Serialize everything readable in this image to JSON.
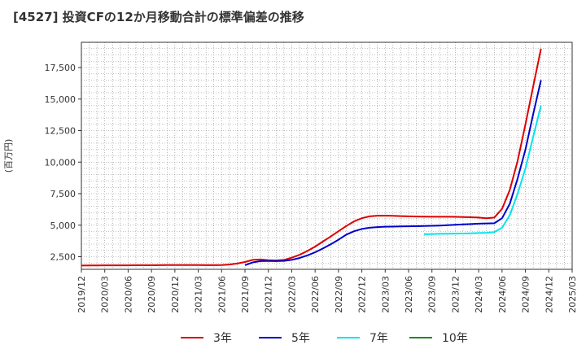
{
  "chart_data": {
    "type": "line",
    "title": "[4527]  投資CFの12か月移動合計の標準偏差の推移",
    "ylabel": "(百万円)",
    "xlabel": "",
    "ylim": [
      1500,
      19500
    ],
    "yticks": [
      2500,
      5000,
      7500,
      10000,
      12500,
      15000,
      17500
    ],
    "ytick_labels": [
      "2,500",
      "5,000",
      "7,500",
      "10,000",
      "12,500",
      "15,000",
      "17,500"
    ],
    "xticks": [
      "2019/12",
      "2020/03",
      "2020/06",
      "2020/09",
      "2020/12",
      "2021/03",
      "2021/06",
      "2021/09",
      "2021/12",
      "2022/03",
      "2022/06",
      "2022/09",
      "2022/12",
      "2023/03",
      "2023/06",
      "2023/09",
      "2023/12",
      "2024/03",
      "2024/06",
      "2024/09",
      "2024/12",
      "2025/03"
    ],
    "grid": true,
    "legend_position": "bottom",
    "series": [
      {
        "name": "3年",
        "color": "#dd0000",
        "points": [
          [
            "2019/12",
            1800
          ],
          [
            "2020/01",
            1810
          ],
          [
            "2020/02",
            1810
          ],
          [
            "2020/03",
            1815
          ],
          [
            "2020/04",
            1815
          ],
          [
            "2020/05",
            1815
          ],
          [
            "2020/06",
            1815
          ],
          [
            "2020/07",
            1820
          ],
          [
            "2020/08",
            1820
          ],
          [
            "2020/09",
            1825
          ],
          [
            "2020/10",
            1830
          ],
          [
            "2020/11",
            1835
          ],
          [
            "2020/12",
            1840
          ],
          [
            "2021/01",
            1840
          ],
          [
            "2021/02",
            1840
          ],
          [
            "2021/03",
            1835
          ],
          [
            "2021/04",
            1830
          ],
          [
            "2021/05",
            1830
          ],
          [
            "2021/06",
            1840
          ],
          [
            "2021/07",
            1880
          ],
          [
            "2021/08",
            1960
          ],
          [
            "2021/09",
            2080
          ],
          [
            "2021/10",
            2250
          ],
          [
            "2021/11",
            2280
          ],
          [
            "2021/12",
            2230
          ],
          [
            "2022/01",
            2200
          ],
          [
            "2022/02",
            2250
          ],
          [
            "2022/03",
            2420
          ],
          [
            "2022/04",
            2650
          ],
          [
            "2022/05",
            2950
          ],
          [
            "2022/06",
            3300
          ],
          [
            "2022/07",
            3700
          ],
          [
            "2022/08",
            4100
          ],
          [
            "2022/09",
            4520
          ],
          [
            "2022/10",
            4930
          ],
          [
            "2022/11",
            5300
          ],
          [
            "2022/12",
            5550
          ],
          [
            "2023/01",
            5700
          ],
          [
            "2023/02",
            5750
          ],
          [
            "2023/03",
            5760
          ],
          [
            "2023/04",
            5740
          ],
          [
            "2023/05",
            5720
          ],
          [
            "2023/06",
            5700
          ],
          [
            "2023/07",
            5690
          ],
          [
            "2023/08",
            5680
          ],
          [
            "2023/09",
            5670
          ],
          [
            "2023/10",
            5670
          ],
          [
            "2023/11",
            5670
          ],
          [
            "2023/12",
            5660
          ],
          [
            "2024/01",
            5650
          ],
          [
            "2024/02",
            5630
          ],
          [
            "2024/03",
            5600
          ],
          [
            "2024/04",
            5550
          ],
          [
            "2024/05",
            5600
          ],
          [
            "2024/06",
            6300
          ],
          [
            "2024/07",
            7800
          ],
          [
            "2024/08",
            10100
          ],
          [
            "2024/09",
            13000
          ],
          [
            "2024/10",
            16000
          ],
          [
            "2024/11",
            19000
          ]
        ]
      },
      {
        "name": "5年",
        "color": "#0000cc",
        "points": [
          [
            "2021/09",
            1830
          ],
          [
            "2021/10",
            2050
          ],
          [
            "2021/11",
            2150
          ],
          [
            "2021/12",
            2160
          ],
          [
            "2022/01",
            2150
          ],
          [
            "2022/02",
            2170
          ],
          [
            "2022/03",
            2250
          ],
          [
            "2022/04",
            2400
          ],
          [
            "2022/05",
            2600
          ],
          [
            "2022/06",
            2850
          ],
          [
            "2022/07",
            3150
          ],
          [
            "2022/08",
            3480
          ],
          [
            "2022/09",
            3850
          ],
          [
            "2022/10",
            4250
          ],
          [
            "2022/11",
            4520
          ],
          [
            "2022/12",
            4700
          ],
          [
            "2023/01",
            4800
          ],
          [
            "2023/02",
            4850
          ],
          [
            "2023/03",
            4880
          ],
          [
            "2023/04",
            4890
          ],
          [
            "2023/05",
            4900
          ],
          [
            "2023/06",
            4910
          ],
          [
            "2023/07",
            4920
          ],
          [
            "2023/08",
            4930
          ],
          [
            "2023/09",
            4950
          ],
          [
            "2023/10",
            4970
          ],
          [
            "2023/11",
            5000
          ],
          [
            "2023/12",
            5030
          ],
          [
            "2024/01",
            5060
          ],
          [
            "2024/02",
            5090
          ],
          [
            "2024/03",
            5120
          ],
          [
            "2024/04",
            5140
          ],
          [
            "2024/05",
            5150
          ],
          [
            "2024/06",
            5550
          ],
          [
            "2024/07",
            6700
          ],
          [
            "2024/08",
            8700
          ],
          [
            "2024/09",
            11000
          ],
          [
            "2024/10",
            13800
          ],
          [
            "2024/11",
            16500
          ]
        ]
      },
      {
        "name": "7年",
        "color": "#00e5ee",
        "points": [
          [
            "2023/08",
            4280
          ],
          [
            "2023/09",
            4300
          ],
          [
            "2023/10",
            4310
          ],
          [
            "2023/11",
            4320
          ],
          [
            "2023/12",
            4330
          ],
          [
            "2024/01",
            4340
          ],
          [
            "2024/02",
            4360
          ],
          [
            "2024/03",
            4380
          ],
          [
            "2024/04",
            4400
          ],
          [
            "2024/05",
            4450
          ],
          [
            "2024/06",
            4800
          ],
          [
            "2024/07",
            5800
          ],
          [
            "2024/08",
            7500
          ],
          [
            "2024/09",
            9500
          ],
          [
            "2024/10",
            12000
          ],
          [
            "2024/11",
            14500
          ]
        ]
      },
      {
        "name": "10年",
        "color": "#228822",
        "points": []
      }
    ]
  }
}
